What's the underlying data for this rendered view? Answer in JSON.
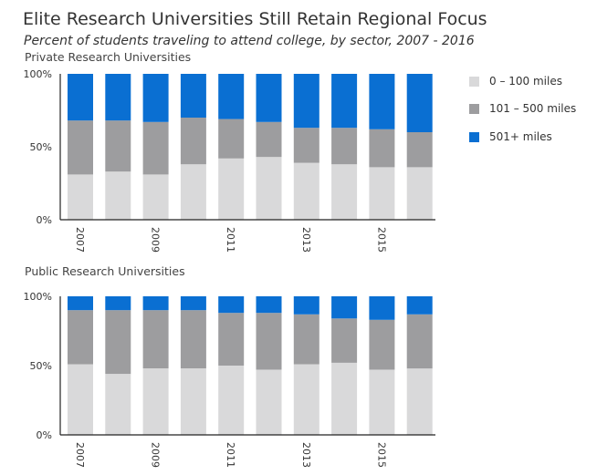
{
  "title": "Elite Research Universities Still Retain Regional Focus",
  "subtitle": "Percent of students traveling to attend college, by sector, 2007 - 2016",
  "colors": {
    "near": "#d9d9da",
    "mid": "#9d9d9f",
    "far": "#0a6fd2",
    "axis": "#222222",
    "grid": "#dddddd"
  },
  "legend": [
    {
      "label": "0 – 100 miles",
      "color": "#d9d9da"
    },
    {
      "label": "101 – 500 miles",
      "color": "#9d9d9f"
    },
    {
      "label": "501+ miles",
      "color": "#0a6fd2"
    }
  ],
  "chart_data": [
    {
      "type": "bar",
      "stacked": true,
      "title": "Private Research Universities",
      "categories": [
        "2007",
        "2008",
        "2009",
        "2010",
        "2011",
        "2012",
        "2013",
        "2014",
        "2015",
        "2016"
      ],
      "x_tick_labels": [
        "2007",
        "2009",
        "2011",
        "2013",
        "2015"
      ],
      "y_ticks": [
        "0%",
        "50%",
        "100%"
      ],
      "ylim": [
        0,
        100
      ],
      "series": [
        {
          "name": "0 – 100 miles",
          "values": [
            31,
            33,
            31,
            38,
            42,
            43,
            39,
            38,
            36,
            36
          ]
        },
        {
          "name": "101 – 500 miles",
          "values": [
            37,
            35,
            36,
            32,
            27,
            24,
            24,
            25,
            26,
            24
          ]
        },
        {
          "name": "501+ miles",
          "values": [
            32,
            32,
            33,
            30,
            31,
            33,
            37,
            37,
            38,
            40
          ]
        }
      ]
    },
    {
      "type": "bar",
      "stacked": true,
      "title": "Public Research Universities",
      "categories": [
        "2007",
        "2008",
        "2009",
        "2010",
        "2011",
        "2012",
        "2013",
        "2014",
        "2015",
        "2016"
      ],
      "x_tick_labels": [
        "2007",
        "2009",
        "2011",
        "2013",
        "2015"
      ],
      "y_ticks": [
        "0%",
        "50%",
        "100%"
      ],
      "ylim": [
        0,
        100
      ],
      "series": [
        {
          "name": "0 – 100 miles",
          "values": [
            51,
            44,
            48,
            48,
            50,
            47,
            51,
            52,
            47,
            48
          ]
        },
        {
          "name": "101 – 500 miles",
          "values": [
            39,
            46,
            42,
            42,
            38,
            41,
            36,
            32,
            36,
            39
          ]
        },
        {
          "name": "501+ miles",
          "values": [
            10,
            10,
            10,
            10,
            12,
            12,
            13,
            16,
            17,
            13
          ]
        }
      ]
    }
  ]
}
